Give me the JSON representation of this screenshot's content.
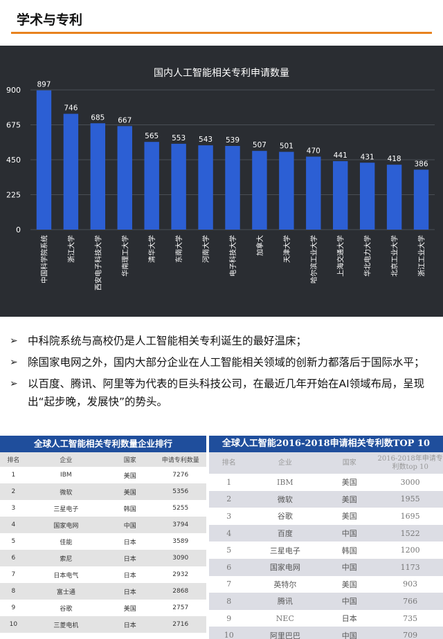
{
  "header": {
    "title": "学术与专利"
  },
  "chart_data": {
    "type": "bar",
    "title": "国内人工智能相关专利申请数量",
    "categories": [
      "中国科学院系统",
      "浙江大学",
      "西安电子科技大学",
      "华南理工大学",
      "清华大学",
      "东南大学",
      "河南大学",
      "电子科技大学",
      "加拿大",
      "天津大学",
      "哈尔滨工业大学",
      "上海交通大学",
      "华北电力大学",
      "北京工业大学",
      "浙江工业大学"
    ],
    "values": [
      897,
      746,
      685,
      667,
      565,
      553,
      543,
      539,
      507,
      501,
      470,
      441,
      431,
      418,
      386
    ],
    "yticks": [
      0,
      225,
      450,
      675,
      900
    ],
    "ylim": [
      0,
      900
    ],
    "grid": true,
    "colors": {
      "bar": "#2c5fd4",
      "background": "#2a2d32",
      "text": "#ffffff",
      "grid": "#4a4e55"
    }
  },
  "bullets": [
    "中科院系统与高校仍是人工智能相关专利诞生的最好温床；",
    "除国家电网之外，国内大部分企业在人工智能相关领域的创新力都落后于国际水平；",
    "以百度、腾讯、阿里等为代表的巨头科技公司，在最近几年开始在AI领域布局，呈现出“起步晚，发展快”的势头。"
  ],
  "bullet_mark": "➢",
  "table_left": {
    "title": "全球人工智能相关专利数量企业排行",
    "columns": [
      "排名",
      "企业",
      "国家",
      "申请专利数量"
    ],
    "rows": [
      [
        "1",
        "IBM",
        "美国",
        "7276"
      ],
      [
        "2",
        "微软",
        "美国",
        "5356"
      ],
      [
        "3",
        "三星电子",
        "韩国",
        "5255"
      ],
      [
        "4",
        "国家电网",
        "中国",
        "3794"
      ],
      [
        "5",
        "佳能",
        "日本",
        "3589"
      ],
      [
        "6",
        "索尼",
        "日本",
        "3090"
      ],
      [
        "7",
        "日本电气",
        "日本",
        "2932"
      ],
      [
        "8",
        "富士通",
        "日本",
        "2868"
      ],
      [
        "9",
        "谷歌",
        "美国",
        "2757"
      ],
      [
        "10",
        "三菱电机",
        "日本",
        "2716"
      ]
    ]
  },
  "table_right": {
    "title": "全球人工智能2016-2018申请相关专利数TOP 10",
    "columns": [
      "排名",
      "企业",
      "国家",
      "2016-2018年申请专利数top 10"
    ],
    "rows": [
      [
        "1",
        "IBM",
        "美国",
        "3000"
      ],
      [
        "2",
        "微软",
        "美国",
        "1955"
      ],
      [
        "3",
        "谷歌",
        "美国",
        "1695"
      ],
      [
        "4",
        "百度",
        "中国",
        "1522"
      ],
      [
        "5",
        "三星电子",
        "韩国",
        "1200"
      ],
      [
        "6",
        "国家电网",
        "中国",
        "1173"
      ],
      [
        "7",
        "英特尔",
        "美国",
        "903"
      ],
      [
        "8",
        "腾讯",
        "中国",
        "766"
      ],
      [
        "9",
        "NEC",
        "日本",
        "735"
      ],
      [
        "10",
        "阿里巴巴",
        "中国",
        "709"
      ]
    ]
  }
}
